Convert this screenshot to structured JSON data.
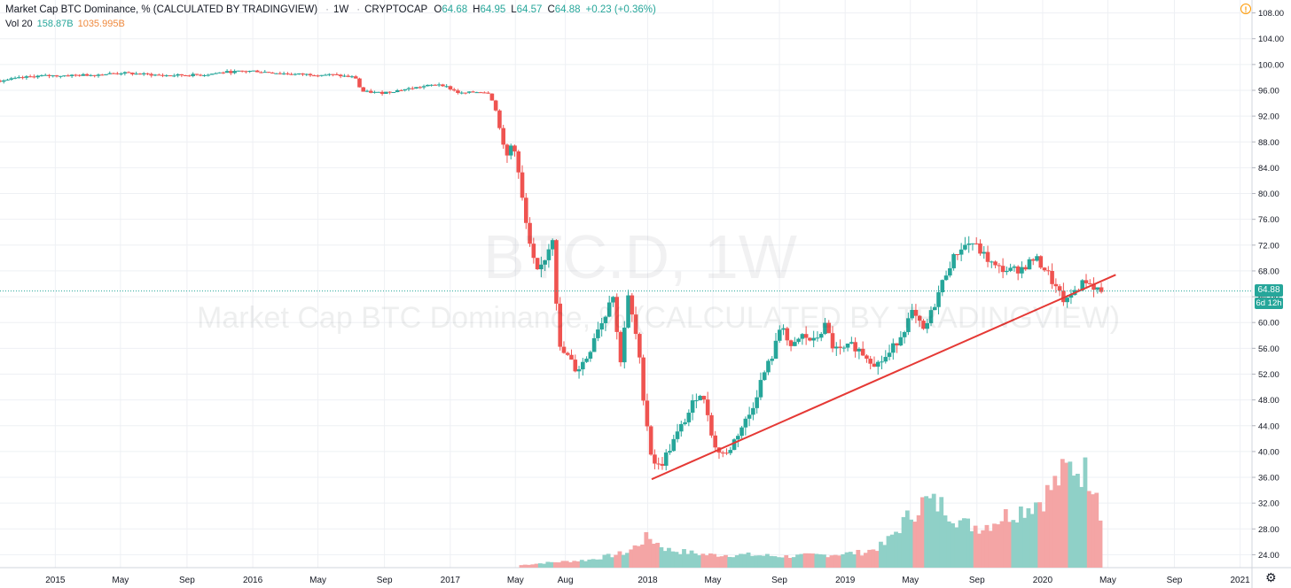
{
  "header": {
    "title": "Market Cap BTC Dominance, % (CALCULATED BY TRADINGVIEW)",
    "interval": "1W",
    "source": "CRYPTOCAP",
    "open_label": "O",
    "open": "64.68",
    "high_label": "H",
    "high": "64.95",
    "low_label": "L",
    "low": "64.57",
    "close_label": "C",
    "close": "64.88",
    "change": "+0.23 (+0.36%)"
  },
  "volume": {
    "label": "Vol 20",
    "value": "158.87B",
    "ma": "1035.995B"
  },
  "watermark": {
    "symbol": "BTC.D, 1W",
    "description": "Market Cap BTC Dominance, % (CALCULATED BY TRADINGVIEW)"
  },
  "price_badge": "64.88",
  "countdown_badge": "6d 12h",
  "alert_icon": "!",
  "settings_icon": "⚙",
  "colors": {
    "up": "#26a69a",
    "down": "#ef5350",
    "trendline": "#e53935",
    "up_volume": "#8fd0c7",
    "down_volume": "#f4a5a5"
  },
  "chart_data": {
    "type": "candlestick",
    "title": "Market Cap BTC Dominance, % (CALCULATED BY TRADINGVIEW)",
    "y_ticks": [
      24,
      28,
      32,
      36,
      40,
      44,
      48,
      52,
      56,
      60,
      64,
      68,
      72,
      76,
      80,
      84,
      88,
      92,
      96,
      100,
      104,
      108
    ],
    "y_tick_labels": [
      "24.00",
      "28.00",
      "32.00",
      "36.00",
      "40.00",
      "44.00",
      "48.00",
      "52.00",
      "56.00",
      "60.00",
      "64.00",
      "68.00",
      "72.00",
      "76.00",
      "80.00",
      "84.00",
      "88.00",
      "92.00",
      "96.00",
      "100.00",
      "104.00",
      "108.00"
    ],
    "ylim": [
      22,
      110
    ],
    "x_ticks": [
      {
        "label": "2015",
        "t": 2015.0
      },
      {
        "label": "May",
        "t": 2015.33
      },
      {
        "label": "Sep",
        "t": 2015.667
      },
      {
        "label": "2016",
        "t": 2016.0
      },
      {
        "label": "May",
        "t": 2016.33
      },
      {
        "label": "Sep",
        "t": 2016.667
      },
      {
        "label": "2017",
        "t": 2017.0
      },
      {
        "label": "May",
        "t": 2017.33
      },
      {
        "label": "Aug",
        "t": 2017.583
      },
      {
        "label": "2018",
        "t": 2018.0
      },
      {
        "label": "May",
        "t": 2018.33
      },
      {
        "label": "Sep",
        "t": 2018.667
      },
      {
        "label": "2019",
        "t": 2019.0
      },
      {
        "label": "May",
        "t": 2019.33
      },
      {
        "label": "Sep",
        "t": 2019.667
      },
      {
        "label": "2020",
        "t": 2020.0
      },
      {
        "label": "May",
        "t": 2020.33
      },
      {
        "label": "Sep",
        "t": 2020.667
      },
      {
        "label": "2021",
        "t": 2021.0
      }
    ],
    "xlim": [
      2014.72,
      2021.06
    ],
    "dominance_path": [
      [
        2014.72,
        97.5
      ],
      [
        2014.9,
        98.2
      ],
      [
        2015.2,
        98.4
      ],
      [
        2015.33,
        98.7
      ],
      [
        2015.55,
        98.3
      ],
      [
        2015.75,
        98.4
      ],
      [
        2015.85,
        98.8
      ],
      [
        2016.0,
        99.0
      ],
      [
        2016.2,
        98.5
      ],
      [
        2016.4,
        98.4
      ],
      [
        2016.52,
        98.0
      ],
      [
        2016.55,
        95.8
      ],
      [
        2016.65,
        95.6
      ],
      [
        2016.8,
        96.3
      ],
      [
        2016.95,
        97.0
      ],
      [
        2017.05,
        95.5
      ],
      [
        2017.15,
        95.8
      ],
      [
        2017.2,
        95.6
      ],
      [
        2017.24,
        92.0
      ],
      [
        2017.28,
        85.0
      ],
      [
        2017.32,
        88.5
      ],
      [
        2017.36,
        80.0
      ],
      [
        2017.4,
        72.0
      ],
      [
        2017.44,
        67.5
      ],
      [
        2017.48,
        70.0
      ],
      [
        2017.52,
        73.5
      ],
      [
        2017.55,
        56.0
      ],
      [
        2017.6,
        54.5
      ],
      [
        2017.64,
        52.5
      ],
      [
        2017.7,
        55.0
      ],
      [
        2017.74,
        59.0
      ],
      [
        2017.78,
        60.5
      ],
      [
        2017.82,
        65.5
      ],
      [
        2017.86,
        53.5
      ],
      [
        2017.9,
        64.0
      ],
      [
        2017.95,
        56.5
      ],
      [
        2017.98,
        48.0
      ],
      [
        2018.02,
        39.0
      ],
      [
        2018.06,
        37.5
      ],
      [
        2018.12,
        41.0
      ],
      [
        2018.2,
        45.5
      ],
      [
        2018.26,
        49.5
      ],
      [
        2018.3,
        46.5
      ],
      [
        2018.34,
        40.5
      ],
      [
        2018.4,
        39.5
      ],
      [
        2018.46,
        43.0
      ],
      [
        2018.52,
        46.0
      ],
      [
        2018.58,
        51.5
      ],
      [
        2018.64,
        55.5
      ],
      [
        2018.68,
        60.5
      ],
      [
        2018.72,
        55.5
      ],
      [
        2018.78,
        58.0
      ],
      [
        2018.84,
        57.0
      ],
      [
        2018.9,
        59.5
      ],
      [
        2018.94,
        56.0
      ],
      [
        2018.98,
        55.5
      ],
      [
        2019.04,
        56.5
      ],
      [
        2019.1,
        55.0
      ],
      [
        2019.16,
        53.5
      ],
      [
        2019.22,
        55.0
      ],
      [
        2019.28,
        58.0
      ],
      [
        2019.34,
        61.5
      ],
      [
        2019.4,
        58.5
      ],
      [
        2019.46,
        63.5
      ],
      [
        2019.52,
        68.5
      ],
      [
        2019.58,
        71.5
      ],
      [
        2019.64,
        72.5
      ],
      [
        2019.7,
        70.5
      ],
      [
        2019.76,
        68.5
      ],
      [
        2019.84,
        68.0
      ],
      [
        2019.9,
        68.5
      ],
      [
        2019.96,
        70.0
      ],
      [
        2020.02,
        68.0
      ],
      [
        2020.08,
        64.5
      ],
      [
        2020.12,
        63.0
      ],
      [
        2020.16,
        65.0
      ],
      [
        2020.22,
        66.5
      ],
      [
        2020.26,
        65.5
      ],
      [
        2020.3,
        64.88
      ]
    ],
    "volume_path": [
      [
        2017.36,
        0.5
      ],
      [
        2017.5,
        1.0
      ],
      [
        2017.7,
        1.5
      ],
      [
        2017.9,
        3.0
      ],
      [
        2018.0,
        6.0
      ],
      [
        2018.1,
        3.5
      ],
      [
        2018.3,
        2.5
      ],
      [
        2018.5,
        2.5
      ],
      [
        2018.7,
        2.2
      ],
      [
        2018.9,
        2.5
      ],
      [
        2019.1,
        3.0
      ],
      [
        2019.2,
        4.5
      ],
      [
        2019.3,
        9.0
      ],
      [
        2019.4,
        13.0
      ],
      [
        2019.5,
        12.0
      ],
      [
        2019.6,
        8.5
      ],
      [
        2019.7,
        8.0
      ],
      [
        2019.8,
        10.0
      ],
      [
        2019.9,
        11.5
      ],
      [
        2020.0,
        13.5
      ],
      [
        2020.1,
        18.0
      ],
      [
        2020.15,
        20.0
      ],
      [
        2020.22,
        18.5
      ],
      [
        2020.28,
        16.5
      ],
      [
        2020.31,
        0.5
      ]
    ],
    "volume_max_scale": 22,
    "trendline": {
      "start": [
        2018.02,
        35.7
      ],
      "end": [
        2020.37,
        67.4
      ]
    },
    "last_price": 64.88
  }
}
